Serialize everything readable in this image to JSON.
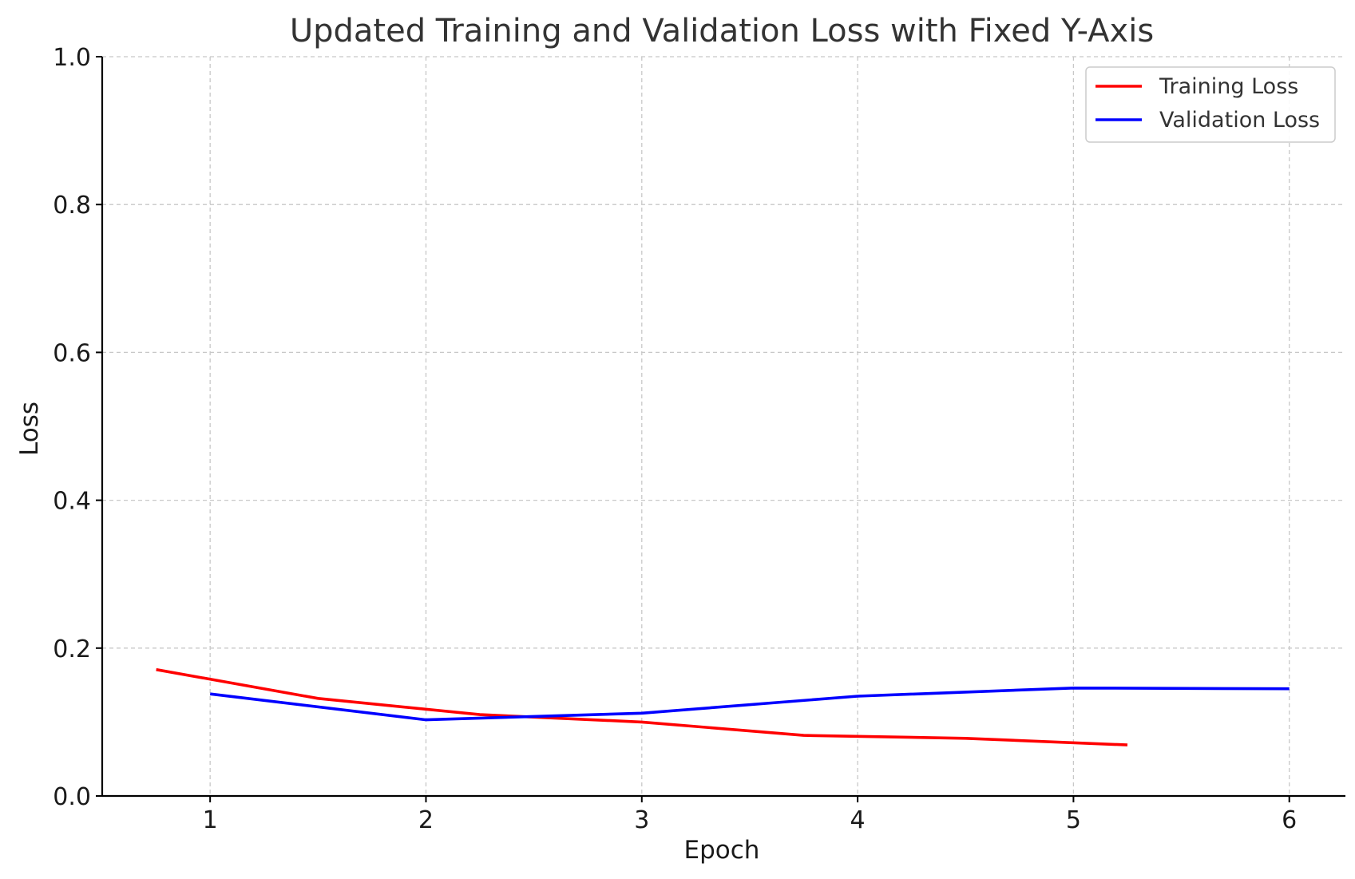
{
  "chart_data": {
    "type": "line",
    "title": "Updated Training and Validation Loss with Fixed Y-Axis",
    "xlabel": "Epoch",
    "ylabel": "Loss",
    "xlim": [
      0.5,
      6.26
    ],
    "ylim": [
      0.0,
      1.0
    ],
    "xticks": [
      1,
      2,
      3,
      4,
      5,
      6
    ],
    "xtick_labels": [
      "1",
      "2",
      "3",
      "4",
      "5",
      "6"
    ],
    "yticks": [
      0.0,
      0.2,
      0.4,
      0.6,
      0.8,
      1.0
    ],
    "ytick_labels": [
      "0.0",
      "0.2",
      "0.4",
      "0.6",
      "0.8",
      "1.0"
    ],
    "grid": true,
    "legend_position": "top-right",
    "series": [
      {
        "name": "Training Loss",
        "color": "#ff0000",
        "x": [
          0.75,
          1.5,
          2.25,
          3.0,
          3.75,
          4.5,
          5.25
        ],
        "y": [
          0.171,
          0.132,
          0.11,
          0.1,
          0.082,
          0.078,
          0.069
        ]
      },
      {
        "name": "Validation Loss",
        "color": "#0000ff",
        "x": [
          1,
          2,
          3,
          4,
          5,
          6
        ],
        "y": [
          0.138,
          0.103,
          0.112,
          0.135,
          0.146,
          0.145
        ]
      }
    ]
  }
}
